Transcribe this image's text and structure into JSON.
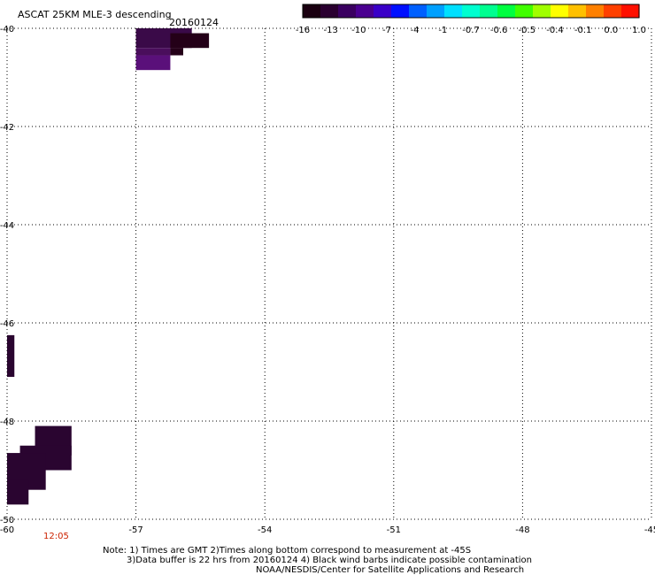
{
  "header": {
    "title": "ASCAT 25KM MLE-3 descending",
    "date": "20160124"
  },
  "colorbar": {
    "labels": [
      "-16",
      "-13",
      "-10",
      "-7",
      "-4",
      "-1",
      "-0.7",
      "-0.6",
      "-0.5",
      "-0.4",
      "-0.1",
      "0.0",
      "1.0"
    ],
    "colors": [
      "#1a0010",
      "#2a0030",
      "#3a0060",
      "#4a0090",
      "#3a00c8",
      "#0010ff",
      "#0060ff",
      "#00a0ff",
      "#00e0ff",
      "#00ffd0",
      "#00ff90",
      "#00ff40",
      "#40ff00",
      "#a0ff00",
      "#ffff00",
      "#ffc000",
      "#ff8000",
      "#ff4000",
      "#ff1000"
    ]
  },
  "map": {
    "lon_range": [
      -60,
      -45
    ],
    "lat_range": [
      -50,
      -40
    ],
    "lon_ticks": [
      "-60",
      "-57",
      "-54",
      "-51",
      "-48",
      "-45"
    ],
    "lat_ticks": [
      "-40",
      "-42",
      "-44",
      "-46",
      "-48",
      "-50"
    ],
    "gridlines": true,
    "time_label": "12:05",
    "time_color": "#cc2200"
  },
  "swaths": [
    {
      "lon0": -57.0,
      "lon1": -55.7,
      "lat0": -40.0,
      "lat1": -40.4,
      "color": "#3a0a48"
    },
    {
      "lon0": -56.2,
      "lon1": -55.3,
      "lat0": -40.1,
      "lat1": -40.4,
      "color": "#240018"
    },
    {
      "lon0": -57.0,
      "lon1": -56.2,
      "lat0": -40.4,
      "lat1": -40.55,
      "color": "#4a0e5c"
    },
    {
      "lon0": -56.2,
      "lon1": -55.9,
      "lat0": -40.4,
      "lat1": -40.55,
      "color": "#240018"
    },
    {
      "lon0": -57.0,
      "lon1": -56.2,
      "lat0": -40.55,
      "lat1": -40.85,
      "color": "#5a107a"
    },
    {
      "lon0": -60.0,
      "lon1": -59.83,
      "lat0": -46.25,
      "lat1": -47.1,
      "color": "#2a0530"
    },
    {
      "lon0": -59.35,
      "lon1": -58.5,
      "lat0": -48.1,
      "lat1": -48.7,
      "color": "#2a0530"
    },
    {
      "lon0": -59.7,
      "lon1": -58.5,
      "lat0": -48.5,
      "lat1": -49.0,
      "color": "#2a0530"
    },
    {
      "lon0": -60.0,
      "lon1": -59.1,
      "lat0": -48.65,
      "lat1": -49.4,
      "color": "#2a0530"
    },
    {
      "lon0": -60.0,
      "lon1": -59.5,
      "lat0": -49.2,
      "lat1": -49.7,
      "color": "#2a0530"
    }
  ],
  "notes": {
    "line1": "Note: 1) Times are GMT 2)Times along bottom correspond to measurement at -45S",
    "line2": "3)Data buffer is 22 hrs from 20160124 4) Black wind barbs indicate possible contamination",
    "line3": "NOAA/NESDIS/Center for Satellite Applications and Research"
  }
}
